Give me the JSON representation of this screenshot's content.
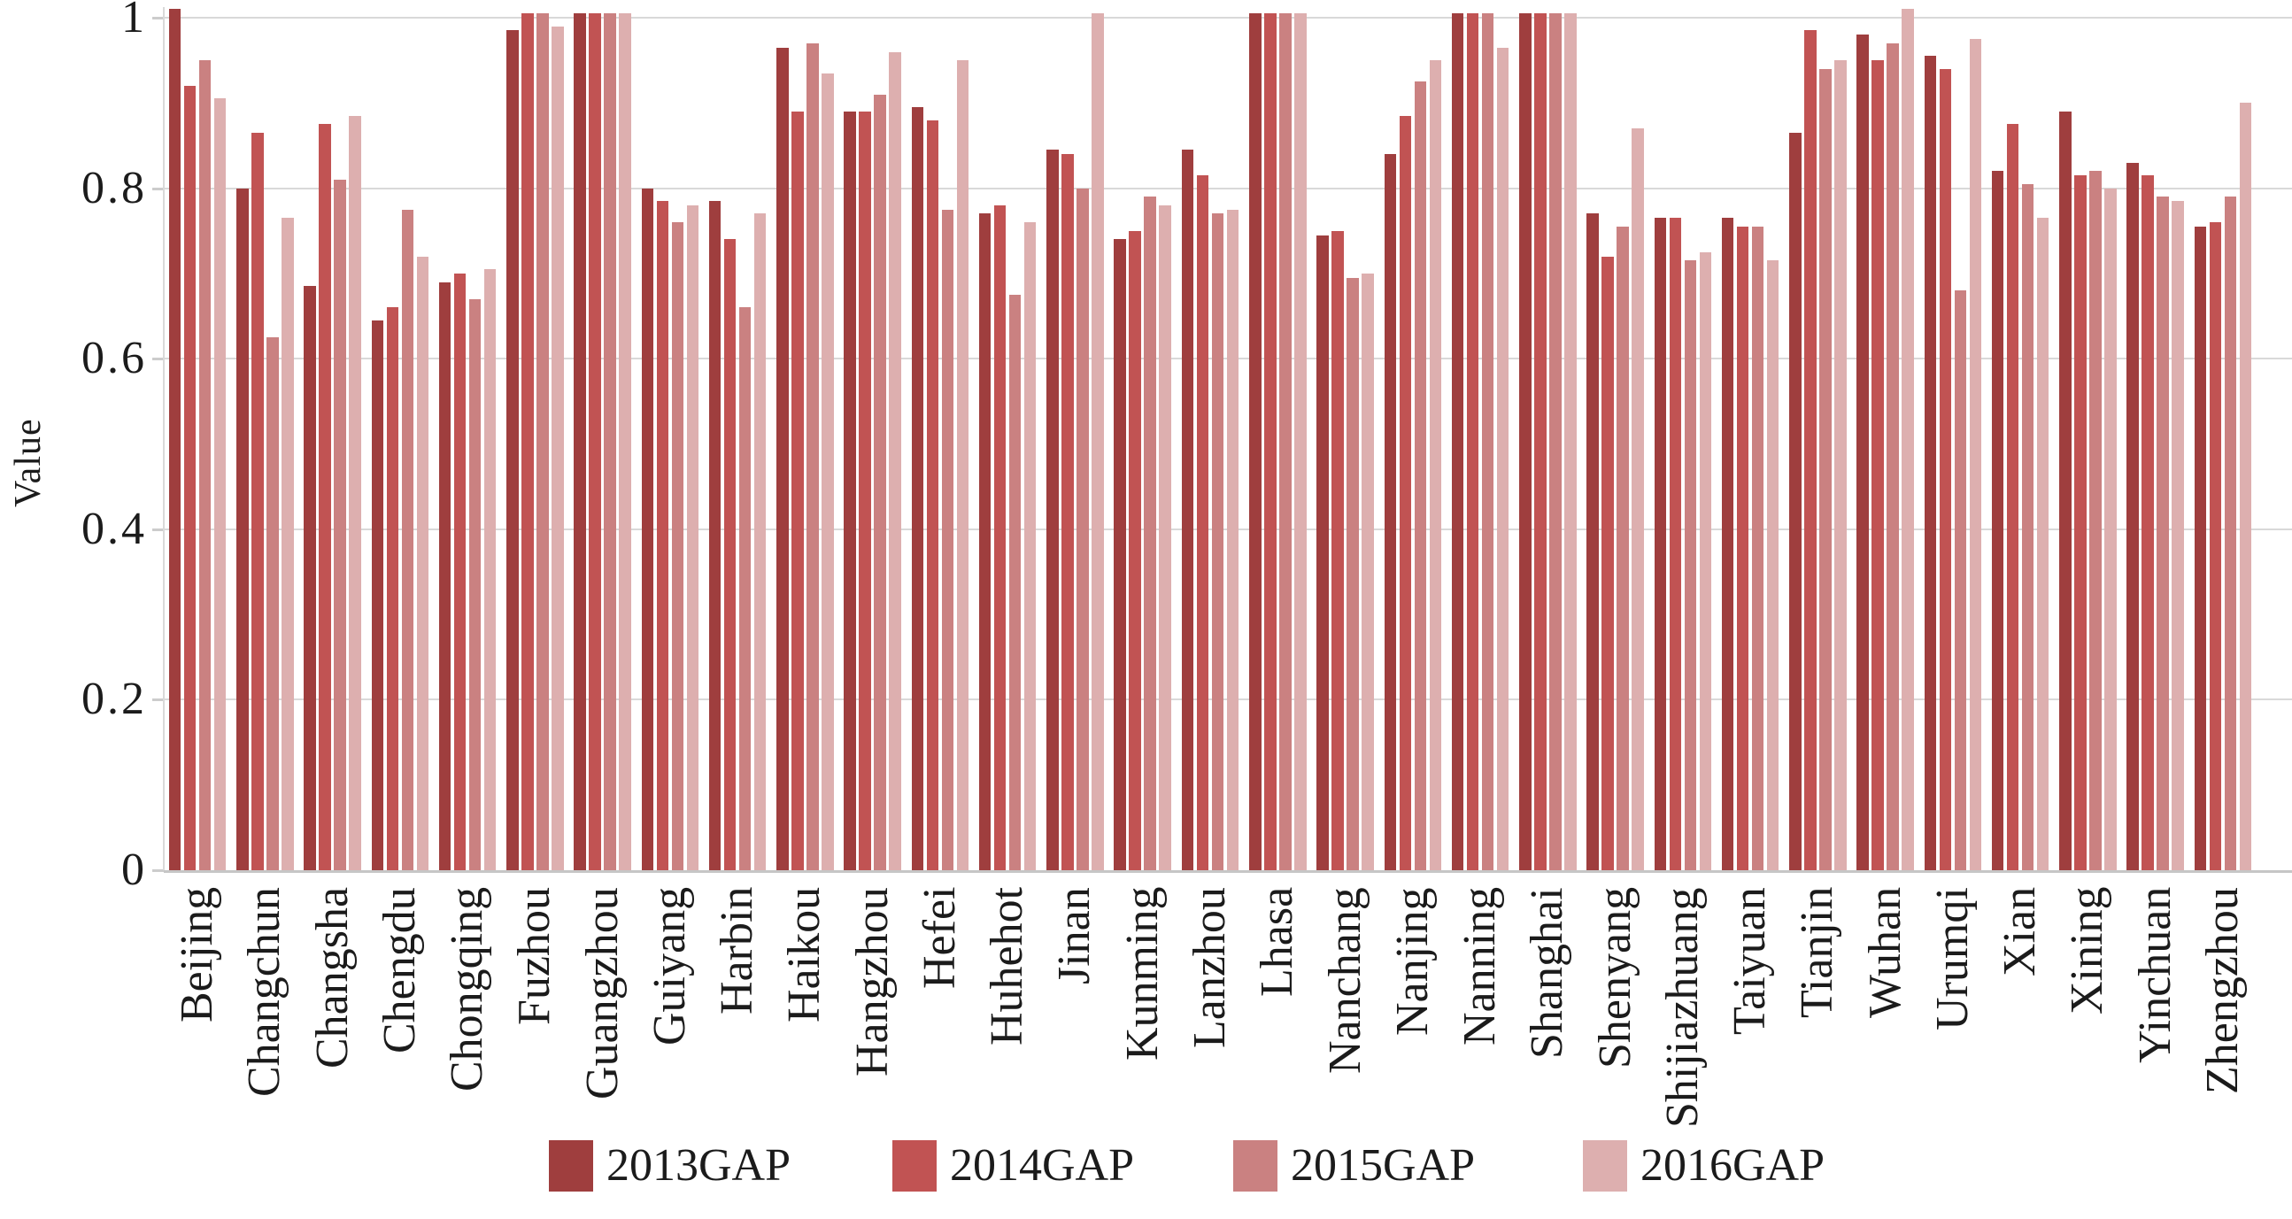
{
  "chart_data": {
    "type": "bar",
    "title": "",
    "xlabel": "",
    "ylabel": "Value",
    "ylim": [
      0,
      1.012
    ],
    "yticks": [
      0,
      0.2,
      0.4,
      0.6,
      0.8,
      1
    ],
    "grid": true,
    "legend_position": "bottom",
    "categories": [
      "Beijing",
      "Changchun",
      "Changsha",
      "Chengdu",
      "Chongqing",
      "Fuzhou",
      "Guangzhou",
      "Guiyang",
      "Harbin",
      "Haikou",
      "Hangzhou",
      "Hefei",
      "Huhehot",
      "Jinan",
      "Kunming",
      "Lanzhou",
      "Lhasa",
      "Nanchang",
      "Nanjing",
      "Nanning",
      "Shanghai",
      "Shenyang",
      "Shijiazhuang",
      "Taiyuan",
      "Tianjin",
      "Wuhan",
      "Urumqi",
      "Xian",
      "Xining",
      "Yinchuan",
      "Zhengzhou"
    ],
    "series": [
      {
        "name": "2013GAP",
        "color": "#9f3e3e",
        "values": [
          1.01,
          0.8,
          0.685,
          0.645,
          0.69,
          0.985,
          1.005,
          0.8,
          0.785,
          0.965,
          0.89,
          0.895,
          0.77,
          0.845,
          0.74,
          0.845,
          1.005,
          0.745,
          0.84,
          1.005,
          1.005,
          0.77,
          0.765,
          0.765,
          0.865,
          0.98,
          0.955,
          0.82,
          0.89,
          0.83,
          0.755
        ]
      },
      {
        "name": "2014GAP",
        "color": "#c15353",
        "values": [
          0.92,
          0.865,
          0.875,
          0.66,
          0.7,
          1.005,
          1.005,
          0.785,
          0.74,
          0.89,
          0.89,
          0.88,
          0.78,
          0.84,
          0.75,
          0.815,
          1.005,
          0.75,
          0.885,
          1.005,
          1.005,
          0.72,
          0.765,
          0.755,
          0.985,
          0.95,
          0.94,
          0.875,
          0.815,
          0.815,
          0.76
        ]
      },
      {
        "name": "2015GAP",
        "color": "#ca8181",
        "values": [
          0.95,
          0.625,
          0.81,
          0.775,
          0.67,
          1.005,
          1.005,
          0.76,
          0.66,
          0.97,
          0.91,
          0.775,
          0.675,
          0.8,
          0.79,
          0.77,
          1.005,
          0.695,
          0.925,
          1.005,
          1.005,
          0.755,
          0.715,
          0.755,
          0.94,
          0.97,
          0.68,
          0.805,
          0.82,
          0.79,
          0.79
        ]
      },
      {
        "name": "2016GAP",
        "color": "#ddafaf",
        "values": [
          0.905,
          0.765,
          0.885,
          0.72,
          0.705,
          0.99,
          1.005,
          0.78,
          0.77,
          0.935,
          0.96,
          0.95,
          0.76,
          1.005,
          0.78,
          0.775,
          1.005,
          0.7,
          0.95,
          0.965,
          1.005,
          0.87,
          0.725,
          0.715,
          0.95,
          1.01,
          0.975,
          0.765,
          0.8,
          0.785,
          0.9
        ]
      }
    ],
    "colors": {
      "gridline": "#d9d9d9",
      "axis_line": "#c6c6c6",
      "tick_mark": "#cccccc",
      "text": "#1b1b1b",
      "background": "#ffffff"
    }
  }
}
